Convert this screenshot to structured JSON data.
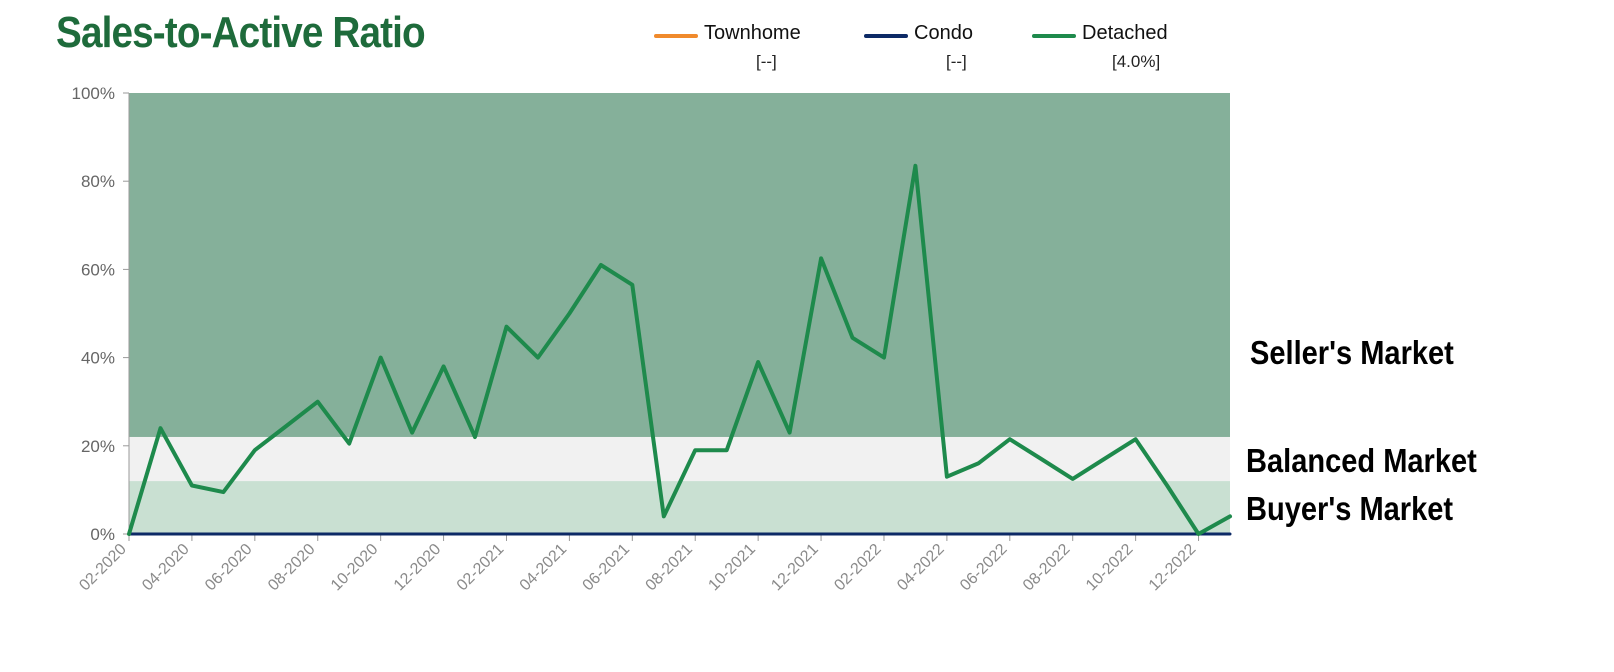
{
  "title": "Sales-to-Active Ratio",
  "legend": [
    {
      "name": "Townhome",
      "value": "[--]",
      "color": "#f08a2c"
    },
    {
      "name": "Condo",
      "value": "[--]",
      "color": "#0d2a66"
    },
    {
      "name": "Detached",
      "value": "[4.0%]",
      "color": "#1e8a4c"
    }
  ],
  "zones": {
    "seller": "Seller's Market",
    "balanced": "Balanced Market",
    "buyer": "Buyer's Market"
  },
  "colors": {
    "seller_zone": "#85b09a",
    "balanced_zone": "#f1f1f1",
    "buyer_zone": "#c9e0d2",
    "detached_line": "#1e8a4c",
    "condo_line": "#0d2a66"
  },
  "chart_data": {
    "type": "line",
    "x": [
      "02-2020",
      "03-2020",
      "04-2020",
      "05-2020",
      "06-2020",
      "07-2020",
      "08-2020",
      "09-2020",
      "10-2020",
      "11-2020",
      "12-2020",
      "01-2021",
      "02-2021",
      "03-2021",
      "04-2021",
      "05-2021",
      "06-2021",
      "07-2021",
      "08-2021",
      "09-2021",
      "10-2021",
      "11-2021",
      "12-2021",
      "01-2022",
      "02-2022",
      "03-2022",
      "04-2022",
      "05-2022",
      "06-2022",
      "07-2022",
      "08-2022",
      "09-2022",
      "10-2022",
      "11-2022",
      "12-2022",
      "01-2023"
    ],
    "tick_labels": [
      "02-2020",
      "04-2020",
      "06-2020",
      "08-2020",
      "10-2020",
      "12-2020",
      "02-2021",
      "04-2021",
      "06-2021",
      "08-2021",
      "10-2021",
      "12-2021",
      "02-2022",
      "04-2022",
      "06-2022",
      "08-2022",
      "10-2022",
      "12-2022"
    ],
    "y_ticks": [
      "0%",
      "20%",
      "40%",
      "60%",
      "80%",
      "100%"
    ],
    "ylim": [
      0,
      100
    ],
    "bands": {
      "buyer": [
        0,
        12
      ],
      "balanced": [
        12,
        22
      ],
      "seller": [
        22,
        100
      ]
    },
    "series": [
      {
        "name": "Detached",
        "values": [
          0,
          24,
          11,
          9.5,
          19,
          24.5,
          30,
          20.5,
          40,
          23,
          38,
          22,
          47,
          40,
          50,
          61,
          56.5,
          4,
          19,
          19,
          39,
          23,
          62.5,
          44.5,
          40,
          83.5,
          13,
          16,
          21.5,
          17,
          12.5,
          17,
          21.5,
          11,
          0,
          4
        ]
      },
      {
        "name": "Condo",
        "values": [
          0,
          0,
          0,
          0,
          0,
          0,
          0,
          0,
          0,
          0,
          0,
          0,
          0,
          0,
          0,
          0,
          0,
          0,
          0,
          0,
          0,
          0,
          0,
          0,
          0,
          0,
          0,
          0,
          0,
          0,
          0,
          0,
          0,
          0,
          0,
          0
        ]
      }
    ]
  }
}
